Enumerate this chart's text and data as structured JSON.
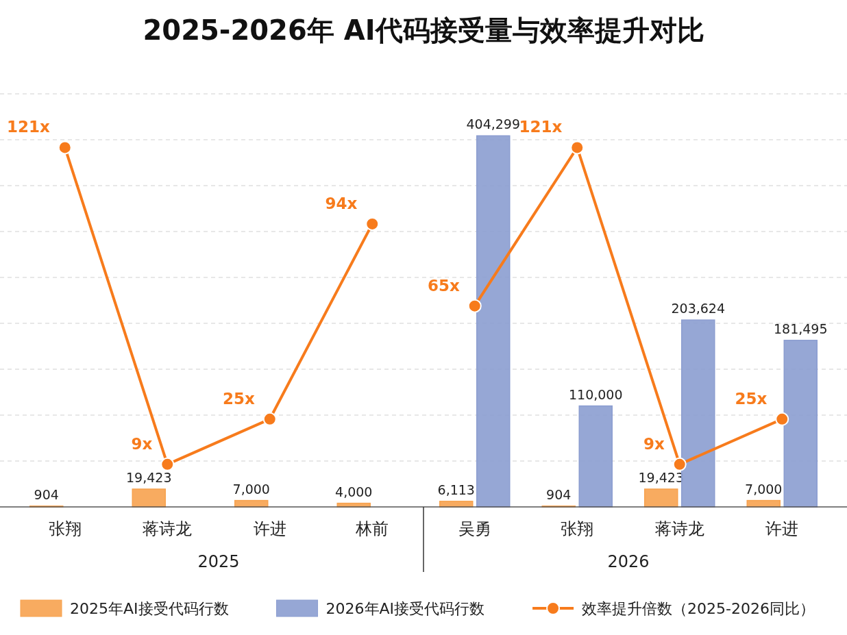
{
  "chart_data": {
    "type": "bar",
    "title": "2025-2026年 AI代码接受量与效率提升对比",
    "categories": [
      "张翔",
      "蒋诗龙",
      "许进",
      "林前",
      "吴勇",
      "张翔",
      "蒋诗龙",
      "许进"
    ],
    "series": [
      {
        "name": "2025年AI接受代码行数",
        "color": "#f7a24f",
        "values": [
          904,
          19423,
          7000,
          4000,
          6113,
          904,
          19423,
          7000
        ],
        "value_labels": [
          "904",
          "19,423",
          "7,000",
          "4,000",
          "6,113",
          "904",
          "19,423",
          "7,000"
        ]
      },
      {
        "name": "2026年AI接受代码行数",
        "color": "#8b9dd0",
        "values": [
          null,
          null,
          null,
          null,
          404299,
          110000,
          203624,
          181495
        ],
        "value_labels": [
          null,
          null,
          null,
          null,
          "404,299",
          "110,000",
          "203,624",
          "181,495"
        ]
      },
      {
        "name": "效率提升倍数（2025-2026同比）",
        "type": "line",
        "axis": "y2",
        "color": "#f77b1c",
        "values": [
          121,
          9,
          25,
          94,
          null,
          null,
          null,
          null
        ],
        "value_labels": [
          "121x",
          "9x",
          "25x",
          "94x",
          null,
          null,
          null,
          null
        ]
      },
      {
        "type": "line",
        "axis": "y2",
        "color": "#f77b1c",
        "values": [
          null,
          null,
          null,
          null,
          65,
          121,
          9,
          25
        ],
        "value_labels": [
          null,
          null,
          null,
          null,
          "65x",
          "121x",
          "9x",
          "25x"
        ]
      }
    ],
    "yticks": [
      0,
      50000,
      100000,
      150000,
      200000,
      250000,
      300000,
      350000,
      400000,
      450000
    ],
    "grid": "y",
    "tick_labels": "x",
    "legend": "bottom",
    "marker": "circle",
    "line_style": "solid",
    "annotations": [
      "2025",
      "2026"
    ]
  }
}
